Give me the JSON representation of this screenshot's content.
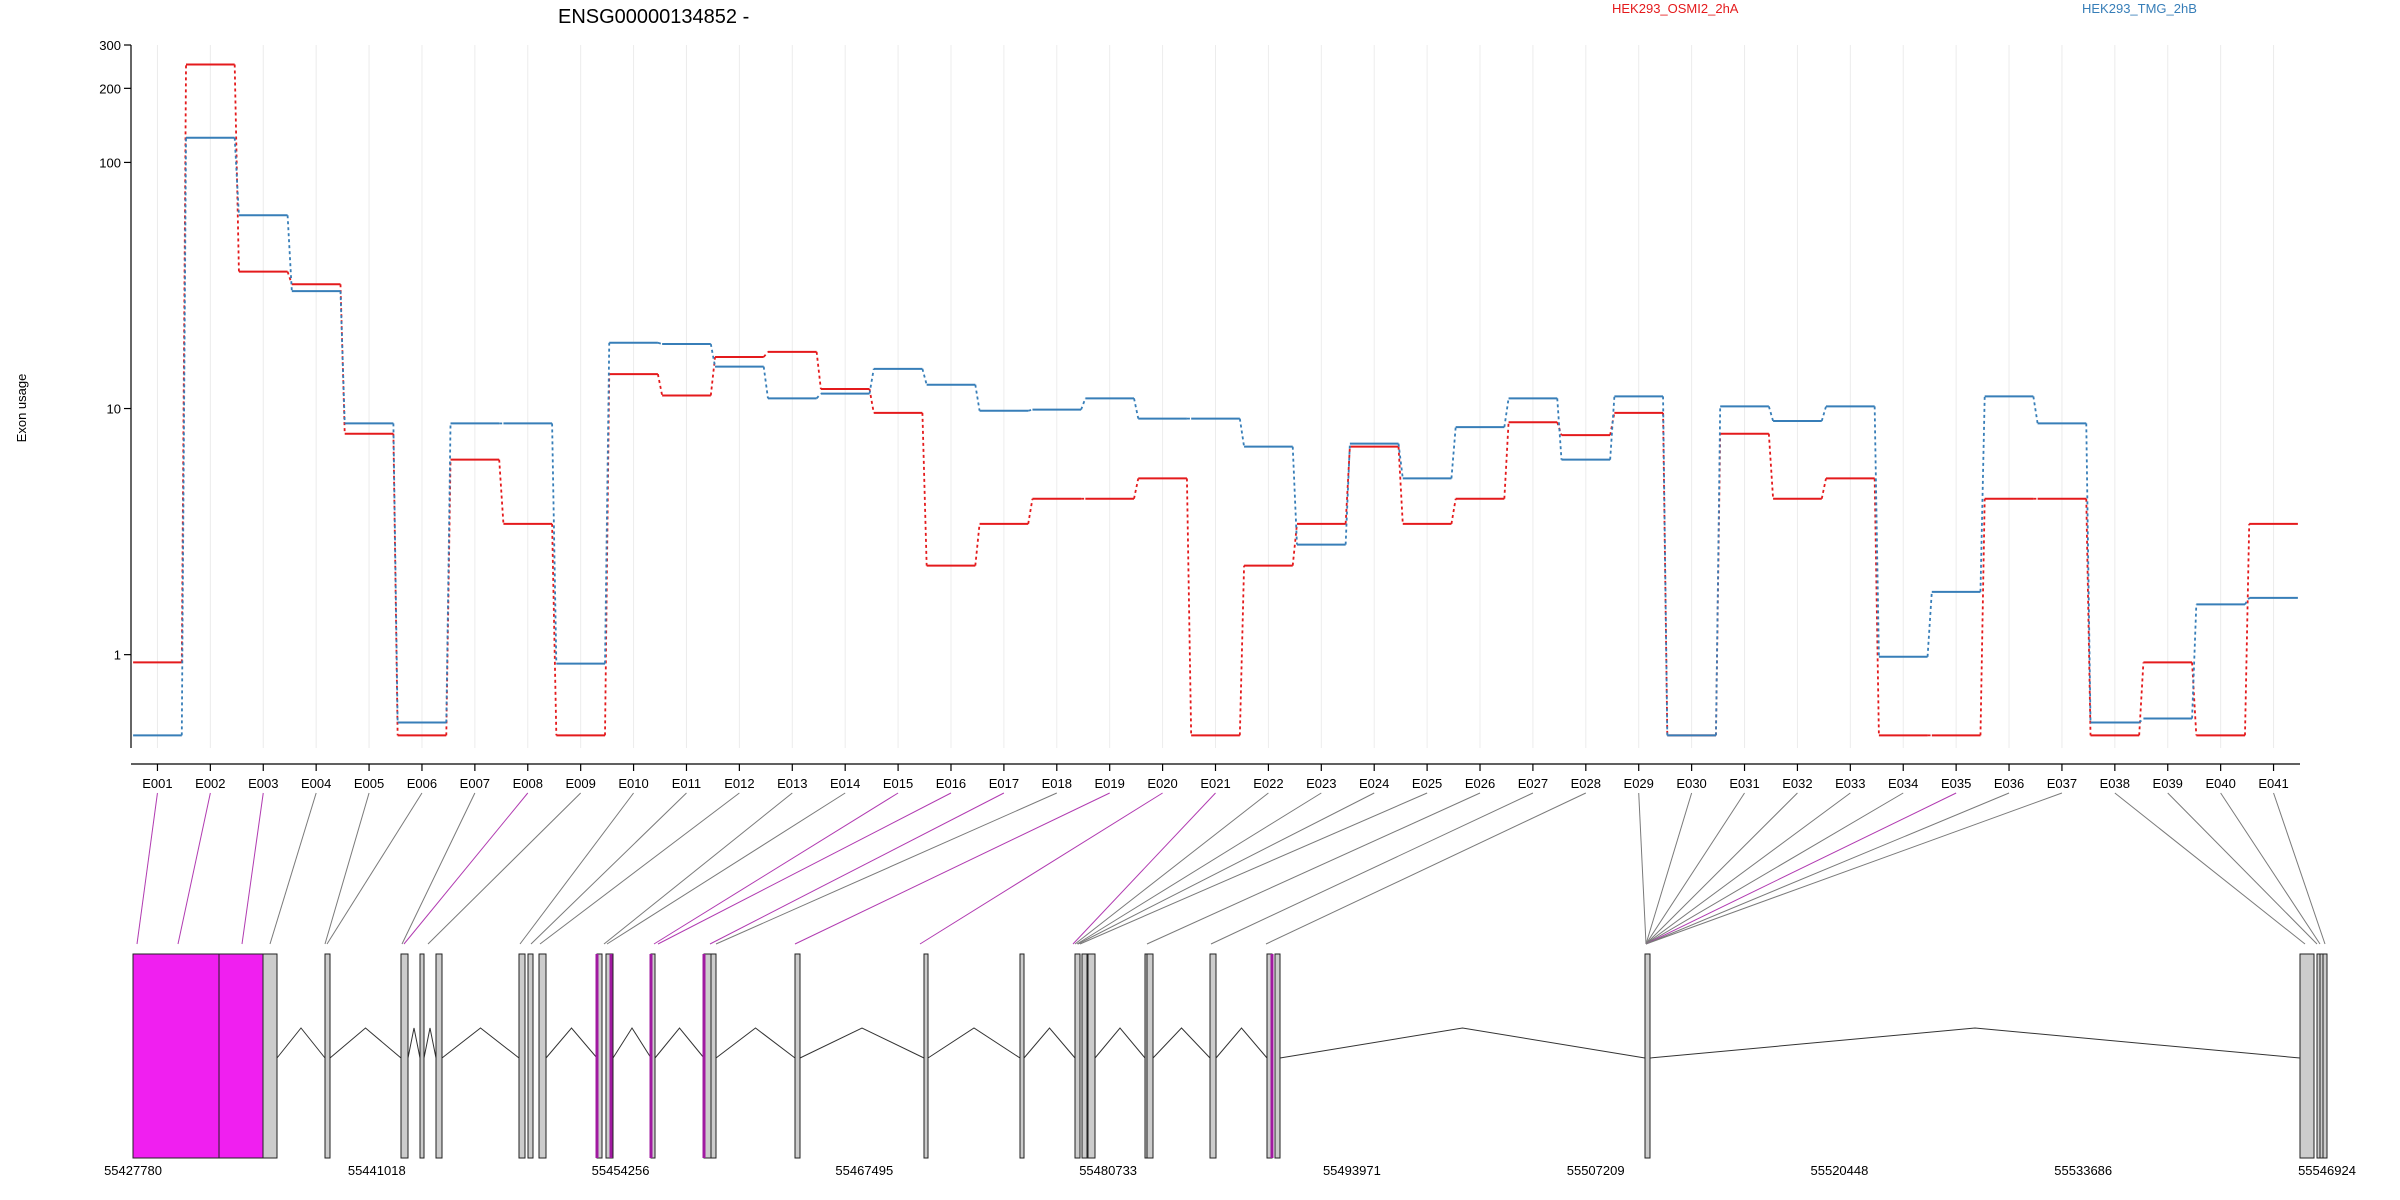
{
  "chart_data": {
    "type": "line",
    "title": "ENSG00000134852 -",
    "ylabel": "Exon usage",
    "yscale": "log",
    "ylim": [
      0.45,
      300
    ],
    "yticks": [
      "1",
      "10",
      "100",
      "200",
      "300"
    ],
    "grid": "vertical",
    "legend": "top-right",
    "colors": {
      "series1": "#e41a1c",
      "series2": "#377eb8",
      "highlight": "#f01ff0",
      "exon_gray": "#cccccc"
    },
    "categories": [
      "E001",
      "E002",
      "E003",
      "E004",
      "E005",
      "E006",
      "E007",
      "E008",
      "E009",
      "E010",
      "E011",
      "E012",
      "E013",
      "E014",
      "E015",
      "E016",
      "E017",
      "E018",
      "E019",
      "E020",
      "E021",
      "E022",
      "E023",
      "E024",
      "E025",
      "E026",
      "E027",
      "E028",
      "E029",
      "E030",
      "E031",
      "E032",
      "E033",
      "E034",
      "E035",
      "E036",
      "E037",
      "E038",
      "E039",
      "E040",
      "E041"
    ],
    "series": [
      {
        "name": "HEK293_OSMI2_2hA",
        "values": [
          0.93,
          250,
          36,
          32,
          7.9,
          0.47,
          6.2,
          3.4,
          0.47,
          13.8,
          11.3,
          16.2,
          17,
          12,
          9.6,
          2.3,
          3.4,
          4.3,
          4.3,
          5.2,
          0.47,
          2.3,
          3.4,
          7,
          3.4,
          4.3,
          8.8,
          7.8,
          9.6,
          0.47,
          7.9,
          4.3,
          5.2,
          0.47,
          0.47,
          4.3,
          4.3,
          0.47,
          0.93,
          0.47,
          3.4
        ]
      },
      {
        "name": "HEK293_TMG_2hB",
        "values": [
          0.47,
          126,
          61,
          30,
          8.7,
          0.53,
          8.7,
          8.7,
          0.92,
          18.5,
          18.3,
          14.8,
          11,
          11.5,
          14.5,
          12.5,
          9.8,
          9.9,
          11,
          9.1,
          9.1,
          7,
          2.8,
          7.2,
          5.2,
          8.4,
          11,
          6.2,
          11.2,
          0.47,
          10.2,
          8.9,
          10.2,
          0.98,
          1.8,
          11.2,
          8.7,
          0.53,
          0.55,
          1.6,
          1.7
        ]
      }
    ],
    "genomic_ticks": [
      "55427780",
      "55441018",
      "55454256",
      "55467495",
      "55480733",
      "55493971",
      "55507209",
      "55520448",
      "55533686",
      "55546924"
    ],
    "gene_model": {
      "exon_highlight": [
        true,
        true,
        true,
        false,
        false,
        false,
        false,
        true,
        false,
        false,
        false,
        false,
        false,
        false,
        true,
        true,
        true,
        false,
        true,
        true,
        true,
        false,
        false,
        false,
        false,
        false,
        false,
        false,
        false,
        false,
        false,
        false,
        false,
        false,
        true,
        false,
        false,
        false,
        false,
        false,
        false
      ]
    }
  }
}
